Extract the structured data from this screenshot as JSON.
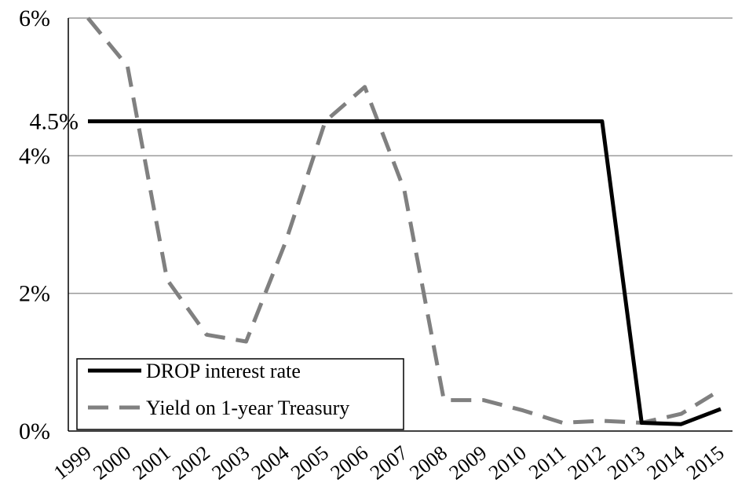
{
  "chart_data": {
    "type": "line",
    "x": [
      "1999",
      "2000",
      "2001",
      "2002",
      "2003",
      "2004",
      "2005",
      "2006",
      "2007",
      "2008",
      "2009",
      "2010",
      "2011",
      "2012",
      "2013",
      "2014",
      "2015"
    ],
    "series": [
      {
        "name": "DROP interest rate",
        "color": "#000000",
        "style": "solid",
        "values": [
          4.5,
          4.5,
          4.5,
          4.5,
          4.5,
          4.5,
          4.5,
          4.5,
          4.5,
          4.5,
          4.5,
          4.5,
          4.5,
          4.5,
          0.12,
          0.1,
          0.32
        ]
      },
      {
        "name": "Yield on 1-year Treasury",
        "color": "#808080",
        "style": "dashed",
        "values": [
          6.0,
          5.3,
          2.2,
          1.4,
          1.3,
          2.75,
          4.5,
          5.0,
          3.5,
          0.45,
          0.45,
          0.3,
          0.12,
          0.15,
          0.12,
          0.25,
          0.6
        ]
      }
    ],
    "yticks": [
      {
        "value": 0,
        "label": "0%"
      },
      {
        "value": 2,
        "label": "2%"
      },
      {
        "value": 4,
        "label": "4%"
      },
      {
        "value": 4.5,
        "label": "4.5%"
      },
      {
        "value": 6,
        "label": "6%"
      }
    ],
    "ylim": [
      0,
      6
    ],
    "grid": true,
    "legend": "bottom-left",
    "title": "",
    "xlabel": "",
    "ylabel": ""
  }
}
